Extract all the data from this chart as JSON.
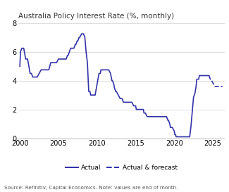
{
  "title": "Australia Policy Interest Rate (%, monthly)",
  "source_note": "Source: Refinitiv, Capital Economics. Note: values are end of month.",
  "line_color": "#3333aa",
  "ylim": [
    0,
    8
  ],
  "yticks": [
    0,
    2,
    4,
    6,
    8
  ],
  "xlim_start": 1999.8,
  "xlim_end": 2026.5,
  "xticks": [
    2000,
    2005,
    2010,
    2015,
    2020,
    2025
  ],
  "actual_x": [
    2000.0,
    2000.08,
    2000.25,
    2000.42,
    2000.5,
    2000.58,
    2000.75,
    2001.0,
    2001.17,
    2001.33,
    2001.5,
    2001.67,
    2001.75,
    2002.0,
    2002.25,
    2002.5,
    2002.75,
    2003.0,
    2003.25,
    2003.5,
    2003.75,
    2004.0,
    2004.17,
    2004.25,
    2004.5,
    2004.75,
    2005.0,
    2005.25,
    2005.5,
    2005.75,
    2006.0,
    2006.17,
    2006.25,
    2006.42,
    2006.58,
    2006.75,
    2007.0,
    2007.17,
    2007.25,
    2007.42,
    2007.5,
    2007.67,
    2007.75,
    2008.0,
    2008.17,
    2008.25,
    2008.42,
    2008.58,
    2008.75,
    2008.83,
    2008.92,
    2009.0,
    2009.08,
    2009.17,
    2009.25,
    2009.33,
    2009.42,
    2009.5,
    2009.58,
    2009.67,
    2009.75,
    2009.83,
    2009.92,
    2010.0,
    2010.25,
    2010.42,
    2010.5,
    2010.75,
    2011.0,
    2011.25,
    2011.5,
    2011.75,
    2011.83,
    2011.92,
    2012.0,
    2012.17,
    2012.25,
    2012.42,
    2012.5,
    2012.75,
    2013.0,
    2013.25,
    2013.42,
    2013.5,
    2013.75,
    2014.0,
    2014.25,
    2014.5,
    2014.75,
    2015.0,
    2015.08,
    2015.25,
    2015.5,
    2015.75,
    2016.0,
    2016.08,
    2016.25,
    2016.5,
    2016.75,
    2017.0,
    2017.25,
    2017.5,
    2017.75,
    2018.0,
    2018.25,
    2018.5,
    2018.75,
    2019.0,
    2019.17,
    2019.25,
    2019.42,
    2019.5,
    2019.75,
    2020.0,
    2020.08,
    2020.17,
    2020.25,
    2020.42,
    2020.5,
    2020.75,
    2021.0,
    2021.25,
    2021.5,
    2021.75,
    2022.0,
    2022.17,
    2022.33,
    2022.5,
    2022.67,
    2022.75,
    2022.83,
    2022.92,
    2023.0,
    2023.17,
    2023.25,
    2023.5,
    2023.75,
    2024.0,
    2024.25,
    2024.5
  ],
  "actual_y": [
    5.0,
    6.0,
    6.25,
    6.25,
    6.25,
    6.0,
    5.5,
    5.5,
    5.0,
    4.5,
    4.5,
    4.25,
    4.25,
    4.25,
    4.25,
    4.5,
    4.75,
    4.75,
    4.75,
    4.75,
    4.75,
    5.25,
    5.25,
    5.25,
    5.25,
    5.25,
    5.5,
    5.5,
    5.5,
    5.5,
    5.5,
    5.75,
    5.75,
    6.0,
    6.25,
    6.25,
    6.25,
    6.5,
    6.5,
    6.75,
    6.75,
    7.0,
    7.0,
    7.25,
    7.25,
    7.25,
    7.0,
    6.0,
    5.25,
    4.25,
    3.25,
    3.25,
    3.25,
    3.0,
    3.0,
    3.0,
    3.0,
    3.0,
    3.0,
    3.0,
    3.0,
    3.25,
    3.5,
    3.75,
    4.5,
    4.5,
    4.75,
    4.75,
    4.75,
    4.75,
    4.75,
    4.5,
    4.25,
    4.0,
    4.0,
    3.75,
    3.5,
    3.25,
    3.25,
    3.0,
    2.75,
    2.75,
    2.5,
    2.5,
    2.5,
    2.5,
    2.5,
    2.5,
    2.25,
    2.25,
    2.0,
    2.0,
    2.0,
    2.0,
    2.0,
    1.75,
    1.75,
    1.5,
    1.5,
    1.5,
    1.5,
    1.5,
    1.5,
    1.5,
    1.5,
    1.5,
    1.5,
    1.5,
    1.25,
    1.25,
    1.0,
    0.75,
    0.75,
    0.5,
    0.25,
    0.25,
    0.1,
    0.1,
    0.1,
    0.1,
    0.1,
    0.1,
    0.1,
    0.1,
    0.1,
    0.85,
    1.85,
    2.85,
    3.1,
    3.35,
    3.6,
    4.1,
    4.1,
    4.1,
    4.35,
    4.35,
    4.35,
    4.35,
    4.35,
    4.35
  ],
  "forecast_x": [
    2024.5,
    2024.67,
    2024.75,
    2025.0,
    2025.25,
    2025.5,
    2025.75,
    2026.0,
    2026.25
  ],
  "forecast_y": [
    4.35,
    4.1,
    4.1,
    3.85,
    3.6,
    3.6,
    3.6,
    3.6,
    3.6
  ]
}
